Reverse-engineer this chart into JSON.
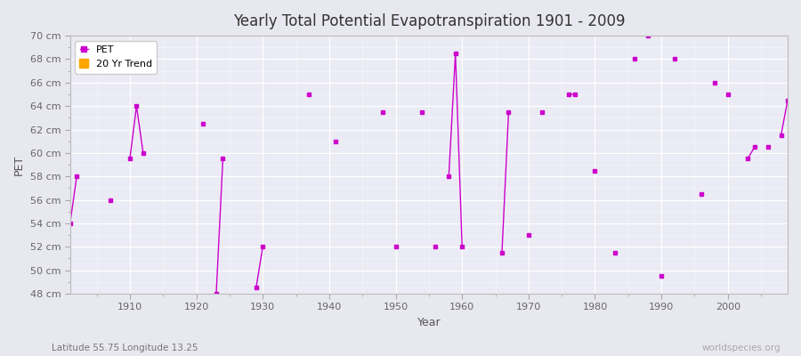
{
  "title": "Yearly Total Potential Evapotranspiration 1901 - 2009",
  "xlabel": "Year",
  "ylabel": "PET",
  "subtitle_lat": "Latitude 55.75 Longitude 13.25",
  "watermark": "worldspecies.org",
  "ylim": [
    48,
    70
  ],
  "xlim": [
    1901,
    2009
  ],
  "yticks": [
    48,
    50,
    52,
    54,
    56,
    58,
    60,
    62,
    64,
    66,
    68,
    70
  ],
  "ytick_labels": [
    "48 cm",
    "50 cm",
    "52 cm",
    "54 cm",
    "56 cm",
    "58 cm",
    "60 cm",
    "62 cm",
    "64 cm",
    "66 cm",
    "68 cm",
    "70 cm"
  ],
  "xticks": [
    1910,
    1920,
    1930,
    1940,
    1950,
    1960,
    1970,
    1980,
    1990,
    2000
  ],
  "pet_color": "#cc00cc",
  "trend_color": "#ffa500",
  "bg_color": "#e8e8f0",
  "plot_bg_color": "#ebebf5",
  "grid_color": "#ffffff",
  "pet_data": {
    "years": [
      1901,
      1902,
      1903,
      1904,
      1905,
      1906,
      1907,
      1908,
      1909,
      1910,
      1911,
      1912,
      1913,
      1914,
      1915,
      1916,
      1917,
      1918,
      1919,
      1920,
      1921,
      1922,
      1923,
      1924,
      1925,
      1926,
      1927,
      1928,
      1929,
      1930,
      1931,
      1932,
      1933,
      1934,
      1935,
      1936,
      1937,
      1938,
      1939,
      1940,
      1941,
      1942,
      1943,
      1944,
      1945,
      1946,
      1947,
      1948,
      1949,
      1950,
      1951,
      1952,
      1953,
      1954,
      1955,
      1956,
      1957,
      1958,
      1959,
      1960,
      1961,
      1962,
      1963,
      1964,
      1965,
      1966,
      1967,
      1968,
      1969,
      1970,
      1971,
      1972,
      1973,
      1974,
      1975,
      1976,
      1977,
      1978,
      1979,
      1980,
      1981,
      1982,
      1983,
      1984,
      1985,
      1986,
      1987,
      1988,
      1989,
      1990,
      1991,
      1992,
      1993,
      1994,
      1995,
      1996,
      1997,
      1998,
      1999,
      2000,
      2001,
      2002,
      2003,
      2004,
      2005,
      2006,
      2007,
      2008,
      2009
    ],
    "values": [
      54.0,
      58.0,
      null,
      null,
      null,
      null,
      56.0,
      null,
      null,
      59.5,
      64.0,
      60.0,
      null,
      null,
      null,
      null,
      null,
      null,
      null,
      null,
      62.5,
      null,
      48.0,
      59.5,
      null,
      null,
      null,
      null,
      48.5,
      52.0,
      null,
      null,
      null,
      null,
      null,
      null,
      65.0,
      null,
      null,
      null,
      61.0,
      null,
      null,
      null,
      null,
      null,
      null,
      63.5,
      null,
      52.0,
      null,
      null,
      null,
      63.5,
      null,
      52.0,
      null,
      58.0,
      68.5,
      52.0,
      null,
      null,
      null,
      null,
      null,
      51.5,
      63.5,
      null,
      null,
      53.0,
      null,
      63.5,
      null,
      null,
      null,
      65.0,
      65.0,
      null,
      null,
      58.5,
      null,
      null,
      51.5,
      null,
      null,
      68.0,
      null,
      70.0,
      null,
      49.5,
      null,
      68.0,
      null,
      null,
      null,
      56.5,
      null,
      66.0,
      null,
      65.0,
      null,
      null,
      59.5,
      60.5,
      null,
      60.5,
      null,
      61.5,
      64.5
    ]
  }
}
